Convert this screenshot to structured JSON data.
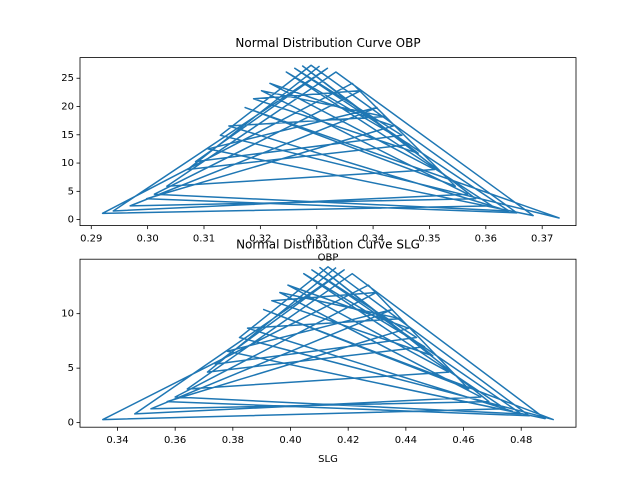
{
  "chart_data": [
    {
      "type": "line",
      "title": "Normal Distribution Curve OBP",
      "xlabel": "OBP",
      "color": "#1f77b4",
      "x": [
        0.3305,
        0.3071,
        0.3465,
        0.3246,
        0.3611,
        0.292,
        0.3363,
        0.3546,
        0.3173,
        0.373,
        0.3129,
        0.329,
        0.3655,
        0.2998,
        0.3436,
        0.3217,
        0.3509,
        0.3034,
        0.3334,
        0.3684,
        0.3107,
        0.3407,
        0.2969,
        0.3582,
        0.3275,
        0.348,
        0.3188,
        0.3378,
        0.3012,
        0.3641,
        0.3261,
        0.3451,
        0.3085,
        0.3319,
        0.2939,
        0.3568,
        0.3202,
        0.3421,
        0.3144,
        0.3626
      ],
      "values": [
        27.16,
        8.86,
        13.29,
        26.1,
        2.43,
        1.11,
        24.09,
        5.9,
        19.82,
        0.29,
        14.91,
        27.3,
        1.2,
        3.69,
        16.56,
        24.09,
        8.86,
        5.9,
        26.1,
        0.71,
        12.5,
        19.82,
        2.43,
        3.69,
        27.16,
        11.73,
        21.37,
        22.8,
        4.49,
        1.53,
        26.76,
        14.91,
        10.25,
        26.76,
        1.53,
        4.49,
        22.8,
        18.21,
        16.56,
        1.94
      ],
      "xlim": [
        0.288,
        0.376
      ],
      "ylim": [
        -1.06,
        28.65
      ],
      "xticks": [
        0.29,
        {
          "value": 0.3,
          "label": "0.30"
        },
        0.31,
        0.32,
        0.33,
        0.34,
        0.35,
        0.36,
        0.37
      ],
      "yticks": [
        0,
        5,
        10,
        15,
        20,
        25
      ]
    },
    {
      "type": "line",
      "title": "Normal Distribution Curve SLG",
      "xlabel": "SLG",
      "color": "#1f77b4",
      "x": [
        0.4158,
        0.3712,
        0.4465,
        0.4046,
        0.4744,
        0.3349,
        0.427,
        0.4618,
        0.3907,
        0.4911,
        0.3823,
        0.413,
        0.4828,
        0.3572,
        0.4409,
        0.3991,
        0.4549,
        0.3642,
        0.4214,
        0.4883,
        0.3781,
        0.4353,
        0.3516,
        0.4688,
        0.4102,
        0.4493,
        0.3935,
        0.4297,
        0.36,
        0.48,
        0.4074,
        0.4437,
        0.3739,
        0.4186,
        0.346,
        0.466,
        0.3963,
        0.4381,
        0.3851,
        0.4772
      ],
      "values": [
        14.23,
        4.64,
        6.96,
        13.67,
        1.27,
        0.28,
        12.62,
        3.09,
        10.38,
        0.28,
        7.81,
        14.3,
        0.63,
        1.93,
        8.67,
        12.62,
        4.64,
        3.09,
        13.67,
        0.37,
        6.55,
        10.38,
        1.27,
        1.93,
        14.23,
        6.14,
        11.19,
        11.94,
        2.35,
        0.8,
        14.02,
        7.81,
        5.37,
        14.02,
        0.8,
        2.35,
        11.94,
        9.54,
        8.67,
        1.02
      ],
      "xlim": [
        0.327,
        0.499
      ],
      "ylim": [
        -0.42,
        15.0
      ],
      "xticks": [
        0.34,
        0.36,
        0.38,
        {
          "value": 0.4,
          "label": "0.40"
        },
        0.42,
        0.44,
        0.46,
        0.48
      ],
      "yticks": [
        0,
        5,
        10
      ]
    }
  ]
}
